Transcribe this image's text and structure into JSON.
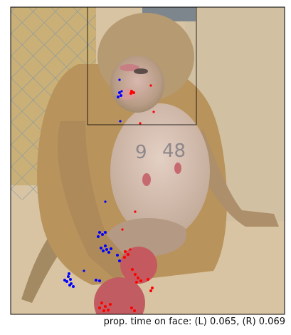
{
  "figure": {
    "caption": "prop. time on face: (L) 0.065, (R) 0.069",
    "left_eye_color": "#0000ff",
    "right_eye_color": "#ff0000",
    "face_roi_stroke": "#000000"
  }
}
